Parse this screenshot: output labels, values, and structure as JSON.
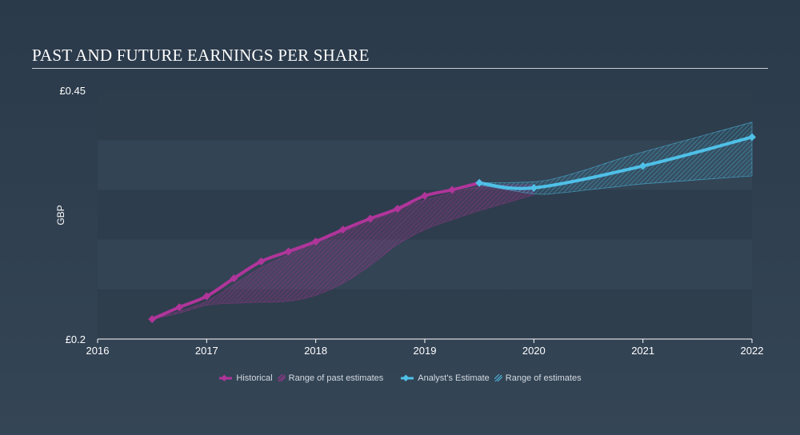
{
  "title": "PAST AND FUTURE EARNINGS PER SHARE",
  "colors": {
    "historical": "#b0359a",
    "estimate": "#4fc0e8",
    "axis_text": "#ffffff",
    "band_dark": "#2e3d4c",
    "band_light": "#344556"
  },
  "legend": {
    "historical": "Historical",
    "past_range": "Range of past estimates",
    "estimate": "Analyst's Estimate",
    "future_range": "Range of estimates"
  },
  "chart_data": {
    "type": "line",
    "ylabel": "GBP",
    "ylim": [
      0.2,
      0.45
    ],
    "y_tick_labels": [
      "£0.2",
      "£0.45"
    ],
    "y_ticks": [
      0.2,
      0.45
    ],
    "xlim": [
      2016,
      2022
    ],
    "x_ticks": [
      2016,
      2017,
      2018,
      2019,
      2020,
      2021,
      2022
    ],
    "x_tick_labels": [
      "2016",
      "2017",
      "2018",
      "2019",
      "2020",
      "2021",
      "2022"
    ],
    "series": [
      {
        "name": "Historical",
        "x": [
          2016.5,
          2016.75,
          2017.0,
          2017.25,
          2017.5,
          2017.75,
          2018.0,
          2018.25,
          2018.5,
          2018.75,
          2019.0,
          2019.25,
          2019.5
        ],
        "y": [
          0.22,
          0.232,
          0.243,
          0.261,
          0.278,
          0.288,
          0.298,
          0.31,
          0.321,
          0.331,
          0.344,
          0.35,
          0.357
        ]
      },
      {
        "name": "Analyst's Estimate",
        "x": [
          2019.5,
          2020.0,
          2021.0,
          2022.0
        ],
        "y": [
          0.357,
          0.352,
          0.374,
          0.403
        ]
      }
    ],
    "past_range": {
      "x": [
        2016.5,
        2016.75,
        2017.0,
        2017.25,
        2017.5,
        2017.75,
        2018.0,
        2018.25,
        2018.5,
        2018.75,
        2019.0,
        2019.25,
        2019.5,
        2019.75,
        2020.0
      ],
      "upper": [
        0.22,
        0.228,
        0.238,
        0.255,
        0.272,
        0.285,
        0.297,
        0.308,
        0.318,
        0.33,
        0.34,
        0.347,
        0.353,
        0.355,
        0.355
      ],
      "lower": [
        0.22,
        0.226,
        0.234,
        0.236,
        0.237,
        0.238,
        0.244,
        0.256,
        0.274,
        0.295,
        0.31,
        0.32,
        0.329,
        0.337,
        0.345
      ]
    },
    "future_range": {
      "x": [
        2019.5,
        2020.0,
        2020.25,
        2020.5,
        2020.75,
        2021.0,
        2021.5,
        2022.0
      ],
      "upper": [
        0.357,
        0.358,
        0.363,
        0.371,
        0.38,
        0.388,
        0.403,
        0.418
      ],
      "lower": [
        0.355,
        0.346,
        0.347,
        0.35,
        0.353,
        0.356,
        0.36,
        0.364
      ]
    },
    "grid": false,
    "legend_position": "bottom-center"
  }
}
